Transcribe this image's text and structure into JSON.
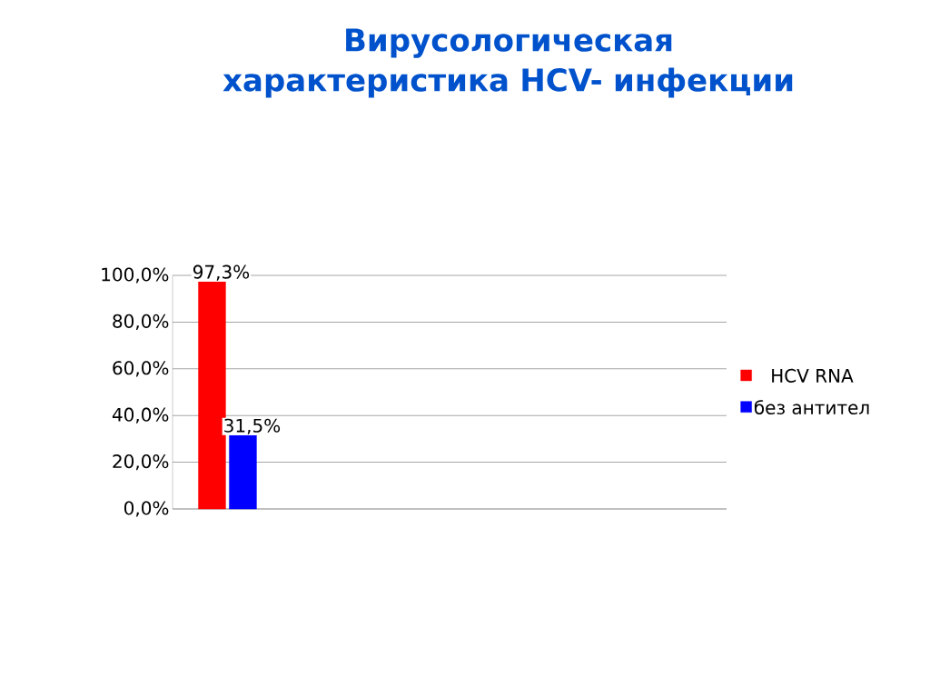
{
  "chart_data": {
    "type": "bar",
    "title": "Вирусологическая характеристика HCV- инфекции",
    "categories": [
      null
    ],
    "series": [
      {
        "name": "HCV RNA",
        "color": "#ff0000",
        "values": [
          97.3
        ],
        "value_labels": [
          "97,3%"
        ]
      },
      {
        "name": "без антител",
        "color": "#0000ff",
        "values": [
          31.5
        ],
        "value_labels": [
          "31,5%"
        ]
      }
    ],
    "ylim": [
      0,
      100
    ],
    "yticks": [
      {
        "value": 0,
        "label": "0,0%"
      },
      {
        "value": 20,
        "label": "20,0%"
      },
      {
        "value": 40,
        "label": "40,0%"
      },
      {
        "value": 60,
        "label": "60,0%"
      },
      {
        "value": 80,
        "label": "80,0%"
      },
      {
        "value": 100,
        "label": "100,0%"
      }
    ],
    "grid": "y",
    "legend": "right"
  }
}
